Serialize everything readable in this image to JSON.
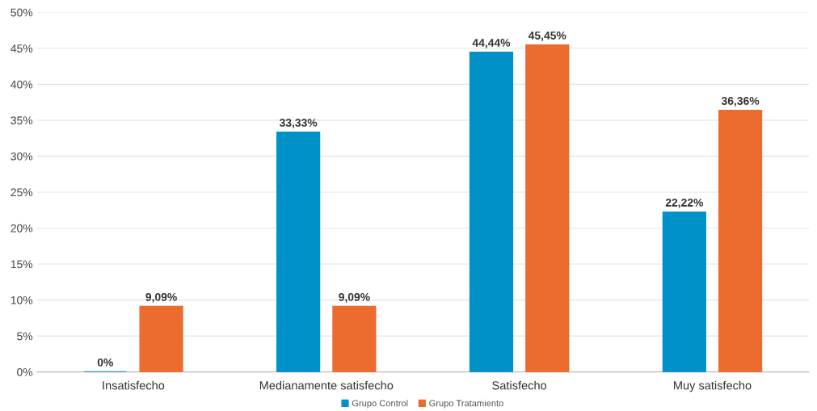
{
  "chart_data": {
    "type": "bar",
    "categories": [
      "Insatisfecho",
      "Medianamente satisfecho",
      "Satisfecho",
      "Muy satisfecho"
    ],
    "series": [
      {
        "name": "Grupo Control",
        "color": "#0091c9",
        "values": [
          0,
          33.33,
          44.44,
          22.22
        ],
        "value_labels": [
          "0%",
          "33,33%",
          "44,44%",
          "22,22%"
        ]
      },
      {
        "name": "Grupo Tratamiento",
        "color": "#ec6b2f",
        "values": [
          9.09,
          9.09,
          45.45,
          36.36
        ],
        "value_labels": [
          "9,09%",
          "9,09%",
          "45,45%",
          "36,36%"
        ]
      }
    ],
    "ylim": [
      0,
      50
    ],
    "yticks": [
      {
        "value": 0,
        "label": "0%"
      },
      {
        "value": 5,
        "label": "5%"
      },
      {
        "value": 10,
        "label": "10%"
      },
      {
        "value": 15,
        "label": "15%"
      },
      {
        "value": 20,
        "label": "20%"
      },
      {
        "value": 25,
        "label": "25%"
      },
      {
        "value": 30,
        "label": "30%"
      },
      {
        "value": 35,
        "label": "35%"
      },
      {
        "value": 40,
        "label": "40%"
      },
      {
        "value": 45,
        "label": "45%"
      },
      {
        "value": 50,
        "label": "50%"
      }
    ],
    "grid": "y",
    "legend": "bottom"
  }
}
